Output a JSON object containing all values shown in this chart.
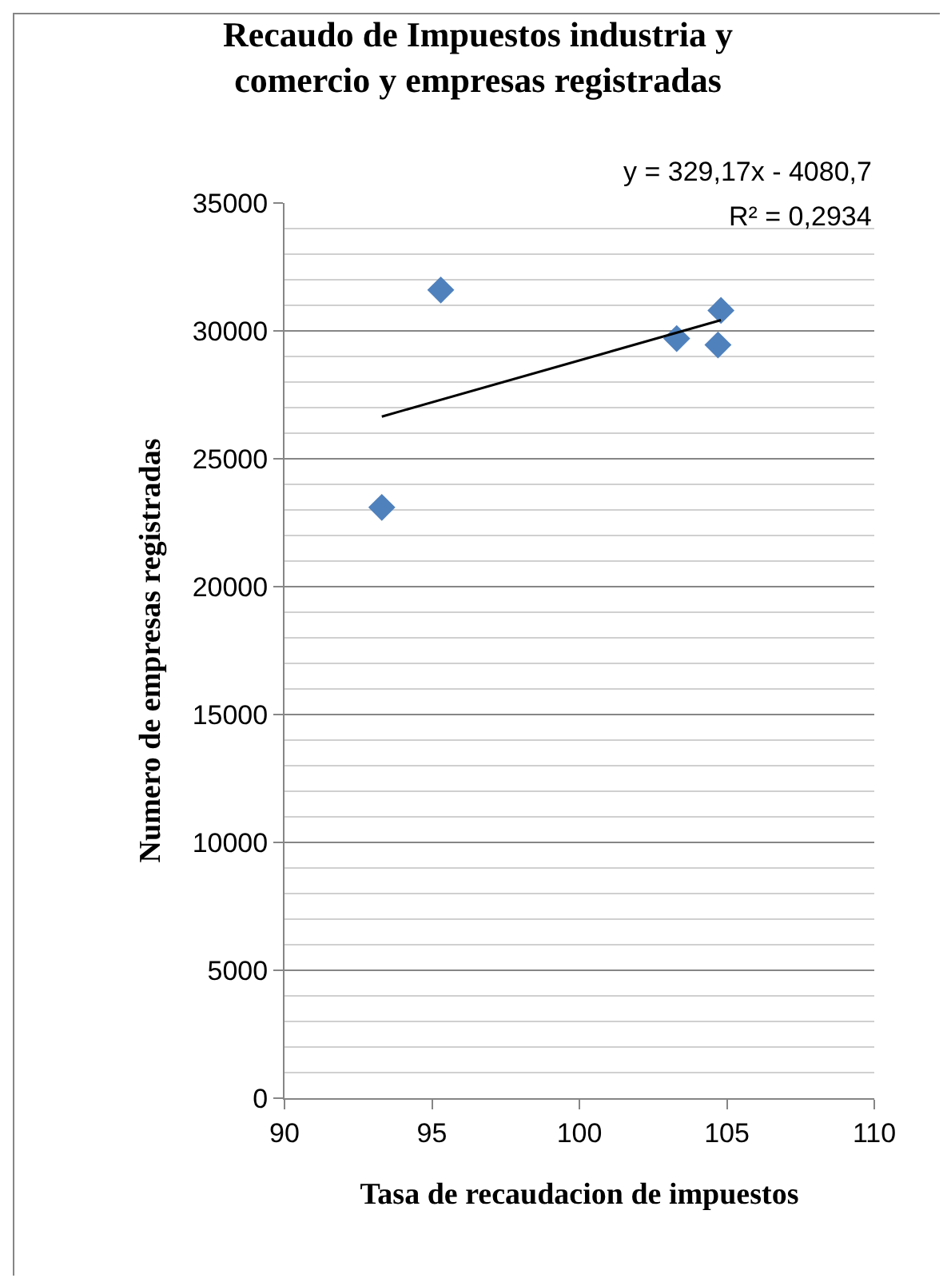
{
  "chart_data": {
    "type": "scatter",
    "title": "Recaudo de Impuestos industria y comercio y empresas registradas",
    "xlabel": "Tasa de recaudacion de impuestos",
    "ylabel": "Numero de empresas registradas",
    "series": [
      {
        "color": "#4f81bd",
        "marker": "diamond",
        "x": [
          93.3,
          95.3,
          103.3,
          104.7,
          104.8
        ],
        "values": [
          23100,
          31600,
          29700,
          29450,
          30800
        ]
      },
      {
        "type": "line",
        "color": "#000000",
        "marker": "none",
        "x": [
          93.3,
          104.8
        ],
        "values": [
          26650,
          30420
        ]
      }
    ],
    "annotations": [
      "y = 329,17x - 4080,7",
      "R² = 0,2934"
    ],
    "xlim": [
      90,
      110
    ],
    "xticks": [
      90,
      95,
      100,
      105,
      110
    ],
    "ylim": [
      0,
      35000
    ],
    "yticks": [
      0,
      5000,
      10000,
      15000,
      20000,
      25000,
      30000,
      35000
    ],
    "grid": "y"
  }
}
